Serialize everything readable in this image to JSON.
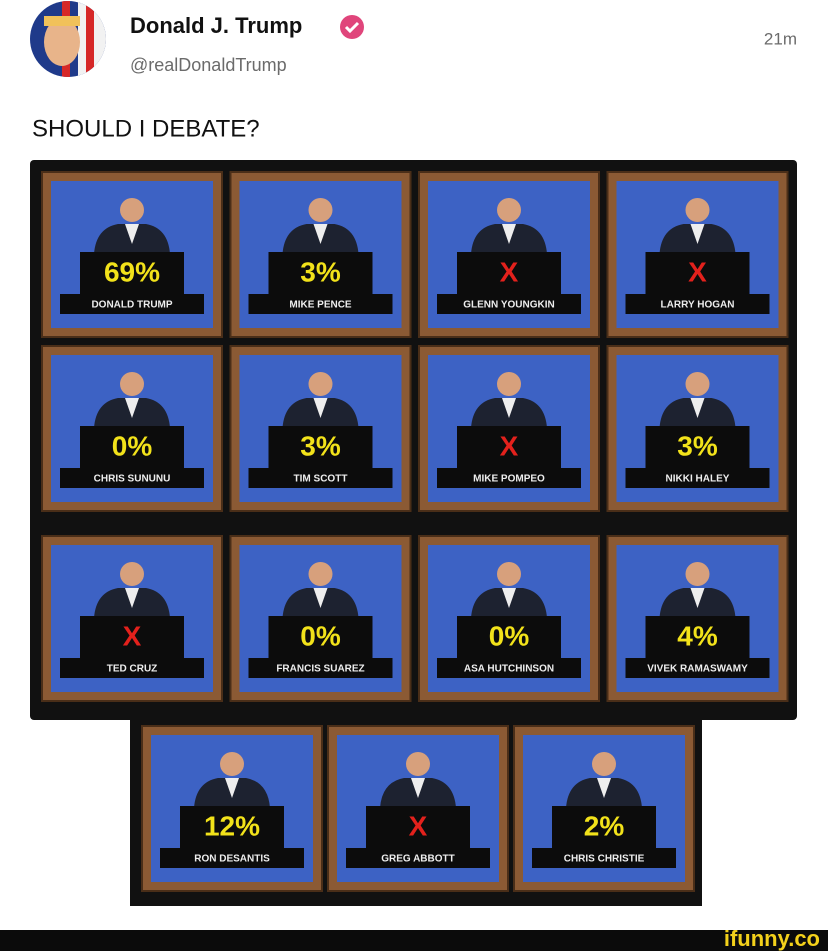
{
  "post": {
    "author": "Donald J. Trump",
    "handle": "@realDonaldTrump",
    "time": "21m",
    "text": "SHOULD I DEBATE?"
  },
  "tiles": [
    {
      "name": "DONALD TRUMP",
      "result": "69%",
      "color": "#f2e21a"
    },
    {
      "name": "MIKE PENCE",
      "result": "3%",
      "color": "#f2e21a"
    },
    {
      "name": "GLENN YOUNGKIN",
      "result": "X",
      "color": "#e3211c"
    },
    {
      "name": "LARRY HOGAN",
      "result": "X",
      "color": "#e3211c"
    },
    {
      "name": "CHRIS SUNUNU",
      "result": "0%",
      "color": "#f2e21a"
    },
    {
      "name": "TIM SCOTT",
      "result": "3%",
      "color": "#f2e21a"
    },
    {
      "name": "MIKE POMPEO",
      "result": "X",
      "color": "#e3211c"
    },
    {
      "name": "NIKKI HALEY",
      "result": "3%",
      "color": "#f2e21a"
    },
    {
      "name": "TED CRUZ",
      "result": "X",
      "color": "#e3211c"
    },
    {
      "name": "FRANCIS SUAREZ",
      "result": "0%",
      "color": "#f2e21a"
    },
    {
      "name": "ASA HUTCHINSON",
      "result": "0%",
      "color": "#f2e21a"
    },
    {
      "name": "VIVEK RAMASWAMY",
      "result": "4%",
      "color": "#f2e21a"
    },
    {
      "name": "RON DESANTIS",
      "result": "12%",
      "color": "#f2e21a"
    },
    {
      "name": "GREG ABBOTT",
      "result": "X",
      "color": "#e3211c"
    },
    {
      "name": "CHRIS CHRISTIE",
      "result": "2%",
      "color": "#f2e21a"
    }
  ],
  "footer": {
    "watermark": "ifunny.co"
  }
}
